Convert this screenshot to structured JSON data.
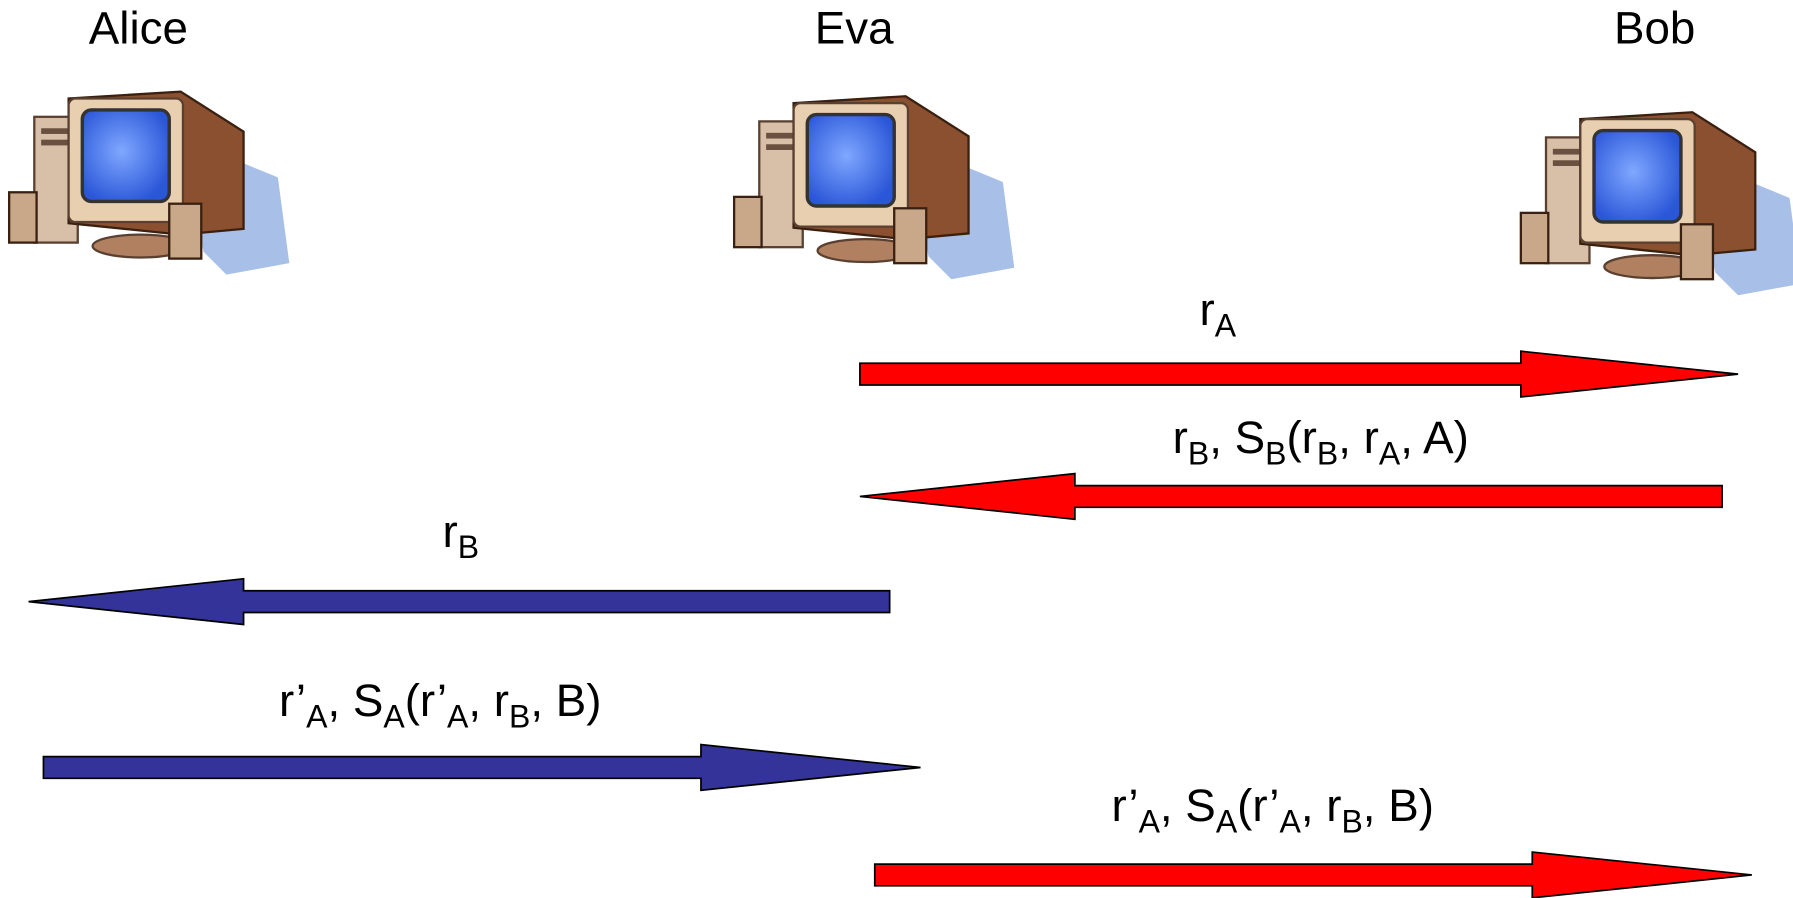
{
  "nodes": [
    {
      "label": "Alice"
    },
    {
      "label": "Eva"
    },
    {
      "label": "Bob"
    }
  ],
  "messages": [
    {
      "label": [
        "r",
        "A"
      ]
    },
    {
      "label": [
        "r",
        "B",
        ", S",
        "B",
        "(r",
        "B",
        ", r",
        "A",
        ", A)"
      ]
    },
    {
      "label": [
        "r",
        "B"
      ]
    },
    {
      "label": [
        "r’",
        "A",
        ", S",
        "A",
        "(r’",
        "A",
        ", r",
        "B",
        ", B)"
      ]
    },
    {
      "label": [
        "r’",
        "A",
        ", S",
        "A",
        "(r’",
        "A",
        ", r",
        "B",
        ", B)"
      ]
    }
  ]
}
